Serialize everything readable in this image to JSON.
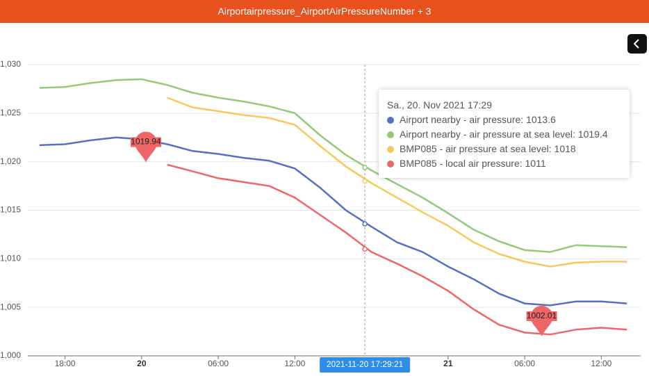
{
  "header": {
    "title": "Airportairpressure_AirportAirPressureNumber + 3"
  },
  "chart_data": {
    "type": "line",
    "x": [
      "2021-11-19 16:00",
      "2021-11-19 18:00",
      "2021-11-19 20:00",
      "2021-11-19 22:00",
      "2021-11-20 00:00",
      "2021-11-20 02:00",
      "2021-11-20 04:00",
      "2021-11-20 06:00",
      "2021-11-20 08:00",
      "2021-11-20 10:00",
      "2021-11-20 12:00",
      "2021-11-20 14:00",
      "2021-11-20 16:00",
      "2021-11-20 18:00",
      "2021-11-20 20:00",
      "2021-11-20 22:00",
      "2021-11-21 00:00",
      "2021-11-21 02:00",
      "2021-11-21 04:00",
      "2021-11-21 06:00",
      "2021-11-21 08:00",
      "2021-11-21 10:00",
      "2021-11-21 12:00",
      "2021-11-21 14:00"
    ],
    "series": [
      {
        "name": "Airport nearby - air pressure",
        "color": "#5470c6",
        "values": [
          1021.7,
          1021.8,
          1022.2,
          1022.5,
          1022.3,
          1021.8,
          1021.1,
          1020.8,
          1020.4,
          1020.1,
          1019.3,
          1017.3,
          1015.0,
          1013.3,
          1011.7,
          1010.7,
          1009.2,
          1007.9,
          1006.4,
          1005.4,
          1005.2,
          1005.6,
          1005.6,
          1005.4
        ]
      },
      {
        "name": "Airport nearby - air pressure at sea level",
        "color": "#91cc75",
        "values": [
          1027.6,
          1027.7,
          1028.1,
          1028.4,
          1028.5,
          1027.9,
          1027.1,
          1026.6,
          1026.2,
          1025.7,
          1025.0,
          1022.7,
          1020.7,
          1019.1,
          1017.7,
          1016.3,
          1014.7,
          1013.0,
          1011.8,
          1010.9,
          1010.7,
          1011.4,
          1011.3,
          1011.2
        ]
      },
      {
        "name": "BMP085 - air pressure at sea level",
        "color": "#fac858",
        "values": [
          null,
          null,
          null,
          null,
          null,
          1026.6,
          1025.6,
          1025.2,
          1024.8,
          1024.5,
          1023.8,
          1021.6,
          1019.5,
          1017.8,
          1016.3,
          1014.8,
          1013.4,
          1011.7,
          1010.5,
          1009.7,
          1009.2,
          1009.6,
          1009.7,
          1009.7
        ]
      },
      {
        "name": "BMP085 - local air pressure",
        "color": "#ee6666",
        "values": [
          null,
          null,
          null,
          null,
          null,
          1019.7,
          1019.0,
          1018.3,
          1017.9,
          1017.5,
          1016.3,
          1014.5,
          1012.7,
          1010.7,
          1009.5,
          1008.2,
          1006.7,
          1004.8,
          1003.2,
          1002.4,
          1002.2,
          1002.7,
          1002.9,
          1002.7
        ]
      }
    ],
    "mark_points": [
      {
        "series": 3,
        "x": "2021-11-20 00:20",
        "value": 1019.94
      },
      {
        "series": 3,
        "x": "2021-11-21 07:20",
        "value": 1002.01
      }
    ],
    "xlim": [
      "2021-11-19 15:05",
      "2021-11-21 15:05"
    ],
    "xticks": [
      {
        "value": "2021-11-19 18:00",
        "label": "18:00"
      },
      {
        "value": "2021-11-20 00:00",
        "label": "20"
      },
      {
        "value": "2021-11-20 06:00",
        "label": "06:00"
      },
      {
        "value": "2021-11-20 12:00",
        "label": "12:00"
      },
      {
        "value": "2021-11-21 00:00",
        "label": "21"
      },
      {
        "value": "2021-11-21 06:00",
        "label": "06:00"
      },
      {
        "value": "2021-11-21 12:00",
        "label": "12:00"
      }
    ],
    "ylim": [
      1000,
      1030
    ],
    "yticks": [
      {
        "value": 1000,
        "label": "1,000"
      },
      {
        "value": 1005,
        "label": "1,005"
      },
      {
        "value": 1010,
        "label": "1,010"
      },
      {
        "value": 1015,
        "label": "1,015"
      },
      {
        "value": 1020,
        "label": "1,020"
      },
      {
        "value": 1025,
        "label": "1,025"
      },
      {
        "value": 1030,
        "label": "1,030"
      }
    ],
    "grid": true,
    "pointer": {
      "x": "2021-11-20 17:29",
      "label": "2021-11-20 17:29:21"
    },
    "tooltip": {
      "title": "Sa., 20. Nov 2021 17:29",
      "items": [
        {
          "series": 0,
          "label": "Airport nearby - air pressure: 1013.6",
          "value": 1013.6
        },
        {
          "series": 1,
          "label": "Airport nearby - air pressure at sea level: 1019.4",
          "value": 1019.4
        },
        {
          "series": 2,
          "label": "BMP085 - air pressure at sea level: 1018",
          "value": 1018
        },
        {
          "series": 3,
          "label": "BMP085 - local air pressure: 1011",
          "value": 1011
        }
      ]
    }
  }
}
